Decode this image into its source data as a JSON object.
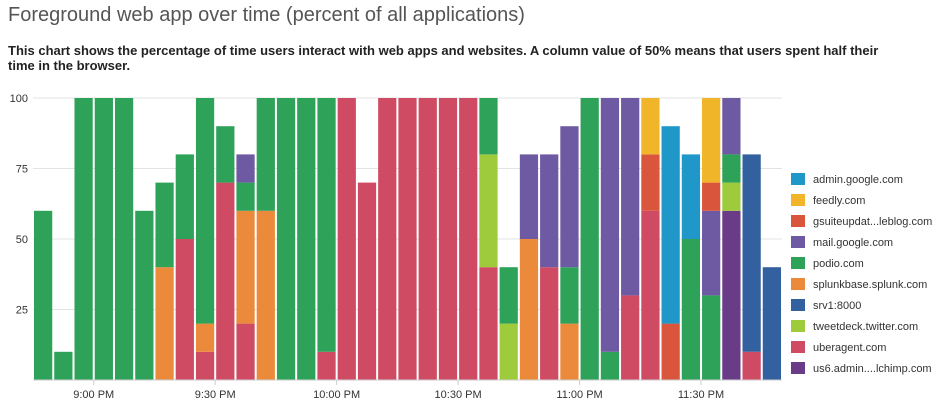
{
  "title": "Foreground web app over time (percent of all applications)",
  "subtitle": "This chart shows the percentage of time users interact with web apps and websites. A column value of 50% means that users spent half their time in the browser.",
  "chart_data": {
    "type": "bar",
    "stacked": true,
    "title": "Foreground web app over time (percent of all applications)",
    "xlabel": "",
    "ylabel": "",
    "ylim": [
      0,
      100
    ],
    "yticks": [
      "25",
      "50",
      "75",
      "100"
    ],
    "x_tick_labels": [
      "9:00 PM",
      "9:30 PM",
      "10:00 PM",
      "10:30 PM",
      "11:00 PM",
      "11:30 PM"
    ],
    "grid": true,
    "legend_position": "right",
    "series": [
      {
        "name": "admin.google.com",
        "color": "#1f97c8"
      },
      {
        "name": "feedly.com",
        "color": "#f0b528"
      },
      {
        "name": "gsuiteupdat...leblog.com",
        "color": "#d9553c"
      },
      {
        "name": "mail.google.com",
        "color": "#6e5aa3"
      },
      {
        "name": "podio.com",
        "color": "#2fa25a"
      },
      {
        "name": "splunkbase.splunk.com",
        "color": "#ec8a3b"
      },
      {
        "name": "srv1:8000",
        "color": "#33619f"
      },
      {
        "name": "tweetdeck.twitter.com",
        "color": "#9ecb3c"
      },
      {
        "name": "uberagent.com",
        "color": "#cf4b63"
      },
      {
        "name": "us6.admin....lchimp.com",
        "color": "#6a3c87"
      }
    ],
    "columns": [
      [
        [
          "podio.com",
          60
        ]
      ],
      [
        [
          "podio.com",
          10
        ]
      ],
      [
        [
          "podio.com",
          100
        ]
      ],
      [
        [
          "podio.com",
          100
        ]
      ],
      [
        [
          "podio.com",
          100
        ]
      ],
      [
        [
          "podio.com",
          60
        ]
      ],
      [
        [
          "splunkbase.splunk.com",
          40
        ],
        [
          "podio.com",
          30
        ]
      ],
      [
        [
          "uberagent.com",
          50
        ],
        [
          "podio.com",
          30
        ]
      ],
      [
        [
          "uberagent.com",
          10
        ],
        [
          "splunkbase.splunk.com",
          10
        ],
        [
          "podio.com",
          80
        ]
      ],
      [
        [
          "uberagent.com",
          70
        ],
        [
          "podio.com",
          20
        ]
      ],
      [
        [
          "uberagent.com",
          20
        ],
        [
          "splunkbase.splunk.com",
          40
        ],
        [
          "podio.com",
          10
        ],
        [
          "mail.google.com",
          10
        ]
      ],
      [
        [
          "splunkbase.splunk.com",
          60
        ],
        [
          "podio.com",
          40
        ]
      ],
      [
        [
          "podio.com",
          100
        ]
      ],
      [
        [
          "podio.com",
          100
        ]
      ],
      [
        [
          "uberagent.com",
          10
        ],
        [
          "podio.com",
          90
        ]
      ],
      [
        [
          "uberagent.com",
          100
        ]
      ],
      [
        [
          "uberagent.com",
          70
        ]
      ],
      [
        [
          "uberagent.com",
          100
        ]
      ],
      [
        [
          "uberagent.com",
          100
        ]
      ],
      [
        [
          "uberagent.com",
          100
        ]
      ],
      [
        [
          "uberagent.com",
          100
        ]
      ],
      [
        [
          "uberagent.com",
          100
        ]
      ],
      [
        [
          "uberagent.com",
          40
        ],
        [
          "tweetdeck.twitter.com",
          40
        ],
        [
          "podio.com",
          20
        ]
      ],
      [
        [
          "tweetdeck.twitter.com",
          20
        ],
        [
          "podio.com",
          20
        ]
      ],
      [
        [
          "splunkbase.splunk.com",
          50
        ],
        [
          "mail.google.com",
          30
        ]
      ],
      [
        [
          "uberagent.com",
          40
        ],
        [
          "mail.google.com",
          40
        ]
      ],
      [
        [
          "splunkbase.splunk.com",
          20
        ],
        [
          "podio.com",
          20
        ],
        [
          "mail.google.com",
          50
        ]
      ],
      [
        [
          "podio.com",
          100
        ]
      ],
      [
        [
          "podio.com",
          10
        ],
        [
          "mail.google.com",
          90
        ]
      ],
      [
        [
          "uberagent.com",
          30
        ],
        [
          "mail.google.com",
          70
        ]
      ],
      [
        [
          "uberagent.com",
          60
        ],
        [
          "gsuiteupdat...leblog.com",
          20
        ],
        [
          "feedly.com",
          20
        ]
      ],
      [
        [
          "gsuiteupdat...leblog.com",
          20
        ],
        [
          "admin.google.com",
          70
        ]
      ],
      [
        [
          "podio.com",
          50
        ],
        [
          "admin.google.com",
          30
        ]
      ],
      [
        [
          "podio.com",
          30
        ],
        [
          "mail.google.com",
          30
        ],
        [
          "gsuiteupdat...leblog.com",
          10
        ],
        [
          "feedly.com",
          30
        ]
      ],
      [
        [
          "us6.admin....lchimp.com",
          60
        ],
        [
          "tweetdeck.twitter.com",
          10
        ],
        [
          "podio.com",
          10
        ],
        [
          "mail.google.com",
          20
        ]
      ],
      [
        [
          "uberagent.com",
          10
        ],
        [
          "srv1:8000",
          70
        ]
      ],
      [
        [
          "srv1:8000",
          40
        ]
      ]
    ]
  }
}
